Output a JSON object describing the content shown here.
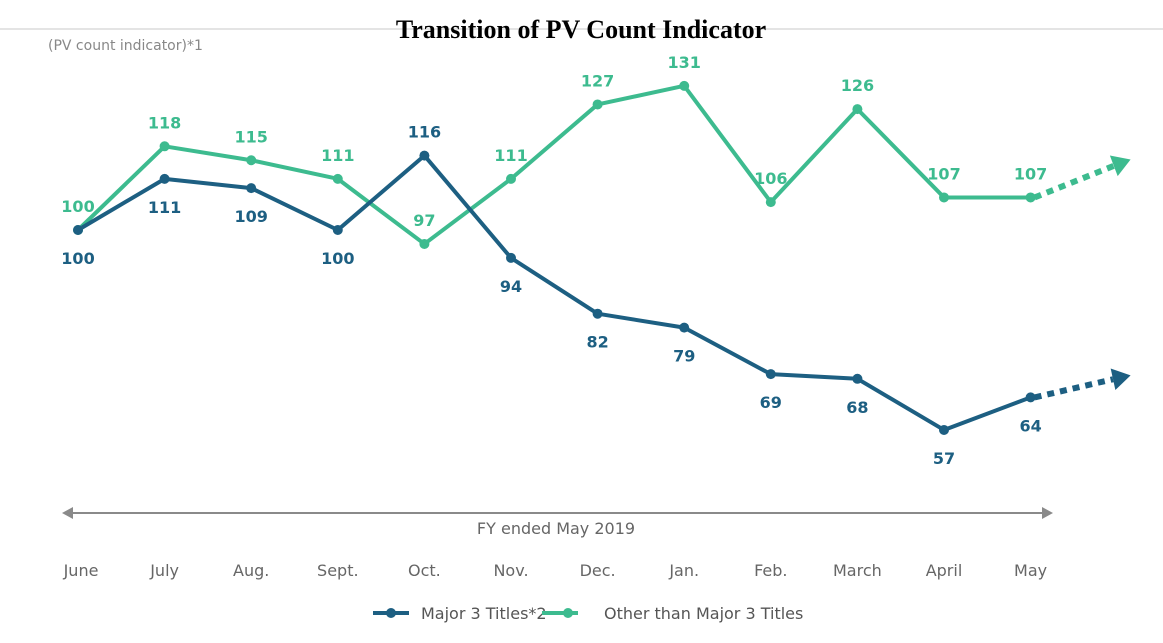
{
  "chart_data": {
    "type": "line",
    "title": "Transition of PV Count Indicator",
    "ylabel": "(PV count indicator)*1",
    "period_label": "FY ended May 2019",
    "categories": [
      "June",
      "July",
      "Aug.",
      "Sept.",
      "Oct.",
      "Nov.",
      "Dec.",
      "Jan.",
      "Feb.",
      "March",
      "April",
      "May"
    ],
    "ylim": [
      40,
      140
    ],
    "grid": false,
    "legend_position": "bottom",
    "series": [
      {
        "name": "Major 3 Titles*2",
        "color": "#1d5f82",
        "values": [
          100,
          111,
          109,
          100,
          116,
          94,
          82,
          79,
          69,
          68,
          57,
          64
        ]
      },
      {
        "name": "Other than Major 3 Titles",
        "color": "#3dbb8f",
        "values": [
          100,
          118,
          115,
          111,
          97,
          111,
          127,
          131,
          106,
          126,
          107,
          107
        ]
      }
    ]
  }
}
